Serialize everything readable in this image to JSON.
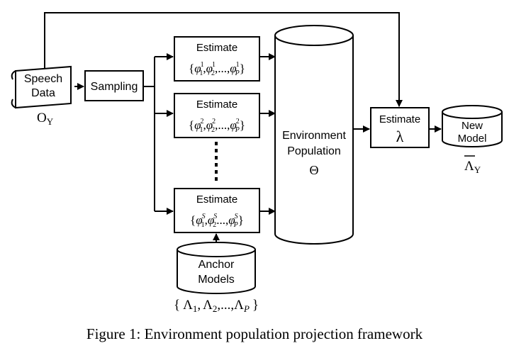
{
  "speech_data": {
    "line1": "Speech",
    "line2": "Data",
    "symbol": "O",
    "sub": "Y"
  },
  "sampling": {
    "label": "Sampling"
  },
  "estimate_boxes": [
    {
      "title": "Estimate",
      "open": "{",
      "v1": "φ",
      "s1": "1",
      "i1": "1",
      "sep": ",",
      "v2": "φ",
      "s2": "1",
      "i2": "2",
      "dots": ",...,",
      "v3": "φ",
      "s3": "1",
      "i3": "P",
      "close": "}"
    },
    {
      "title": "Estimate",
      "open": "{",
      "v1": "φ",
      "s1": "2",
      "i1": "1",
      "sep": ",",
      "v2": "φ",
      "s2": "2",
      "i2": "2",
      "dots": ",...,",
      "v3": "φ",
      "s3": "2",
      "i3": "P",
      "close": "}"
    },
    {
      "title": "Estimate",
      "open": "{",
      "v1": "φ",
      "s1": "S",
      "i1": "1",
      "sep": ",",
      "v2": "φ",
      "s2": "S",
      "i2": "2",
      "dots": "...,",
      "v3": "φ",
      "s3": "S",
      "i3": "P",
      "close": "}"
    }
  ],
  "environment_population": {
    "line1": "Environment",
    "line2": "Population",
    "symbol": "Θ"
  },
  "anchor_models": {
    "line1": "Anchor",
    "line2": "Models",
    "set_open": "{",
    "sym1": "Λ",
    "sub1": "1",
    "comma1": ",",
    "sym2": "Λ",
    "sub2": "2",
    "comma2": ",...,",
    "sym3": "Λ",
    "sub3": "P",
    "set_close": "}"
  },
  "estimate_lambda": {
    "title": "Estimate",
    "symbol": "λ"
  },
  "new_model": {
    "line1": "New",
    "line2": "Model",
    "symbol": "Λ",
    "sub": "Y"
  },
  "caption": "Figure 1: Environment population projection framework"
}
